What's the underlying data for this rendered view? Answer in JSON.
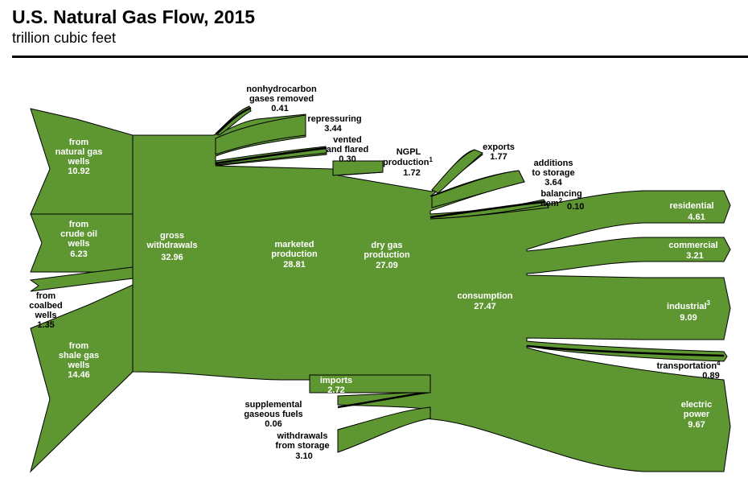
{
  "title": "U.S. Natural Gas Flow, 2015",
  "subtitle": "trillion cubic feet",
  "colors": {
    "flow": "#5e9632",
    "outline": "#000000",
    "text_on_flow": "#ffffff"
  },
  "sources": {
    "natural_gas_wells": {
      "line1": "from",
      "line2": "natural gas",
      "line3": "wells",
      "value": "10.92"
    },
    "crude_oil_wells": {
      "line1": "from",
      "line2": "crude oil",
      "line3": "wells",
      "value": "6.23"
    },
    "coalbed_wells": {
      "line1": "from",
      "line2": "coalbed",
      "line3": "wells",
      "value": "1.35"
    },
    "shale_gas_wells": {
      "line1": "from",
      "line2": "shale gas",
      "line3": "wells",
      "value": "14.46"
    }
  },
  "stages": {
    "gross_withdrawals": {
      "line1": "gross",
      "line2": "withdrawals",
      "value": "32.96"
    },
    "marketed_production": {
      "line1": "marketed",
      "line2": "production",
      "value": "28.81"
    },
    "dry_gas_production": {
      "line1": "dry gas",
      "line2": "production",
      "value": "27.09"
    },
    "consumption": {
      "line1": "consumption",
      "value": "27.47"
    }
  },
  "removals": {
    "nonhydrocarbon": {
      "line1": "nonhydrocarbon",
      "line2": "gases removed",
      "value": "0.41"
    },
    "repressuring": {
      "line1": "repressuring",
      "value": "3.44"
    },
    "vented_flared": {
      "line1": "vented",
      "line2": "and flared",
      "value": "0.30"
    },
    "ngpl": {
      "line1": "NGPL",
      "line2": "production",
      "sup": "1",
      "value": "1.72"
    },
    "exports": {
      "line1": "exports",
      "value": "1.77"
    },
    "additions_storage": {
      "line1": "additions",
      "line2": "to storage",
      "value": "3.64"
    },
    "balancing_item": {
      "line1": "balancing",
      "line2": "item",
      "sup": "2",
      "value": "0.10"
    }
  },
  "supplements": {
    "imports": {
      "line1": "imports",
      "value": "2.72"
    },
    "supplemental_fuels": {
      "line1": "supplemental",
      "line2": "gaseous fuels",
      "value": "0.06"
    },
    "withdrawals_storage": {
      "line1": "withdrawals",
      "line2": "from storage",
      "value": "3.10"
    }
  },
  "end_uses": {
    "residential": {
      "label": "residential",
      "value": "4.61"
    },
    "commercial": {
      "label": "commercial",
      "value": "3.21"
    },
    "industrial": {
      "label": "industrial",
      "sup": "3",
      "value": "9.09"
    },
    "transportation": {
      "label": "transportation",
      "sup": "4",
      "value": "0.89"
    },
    "electric_power": {
      "line1": "electric",
      "line2": "power",
      "value": "9.67"
    }
  }
}
